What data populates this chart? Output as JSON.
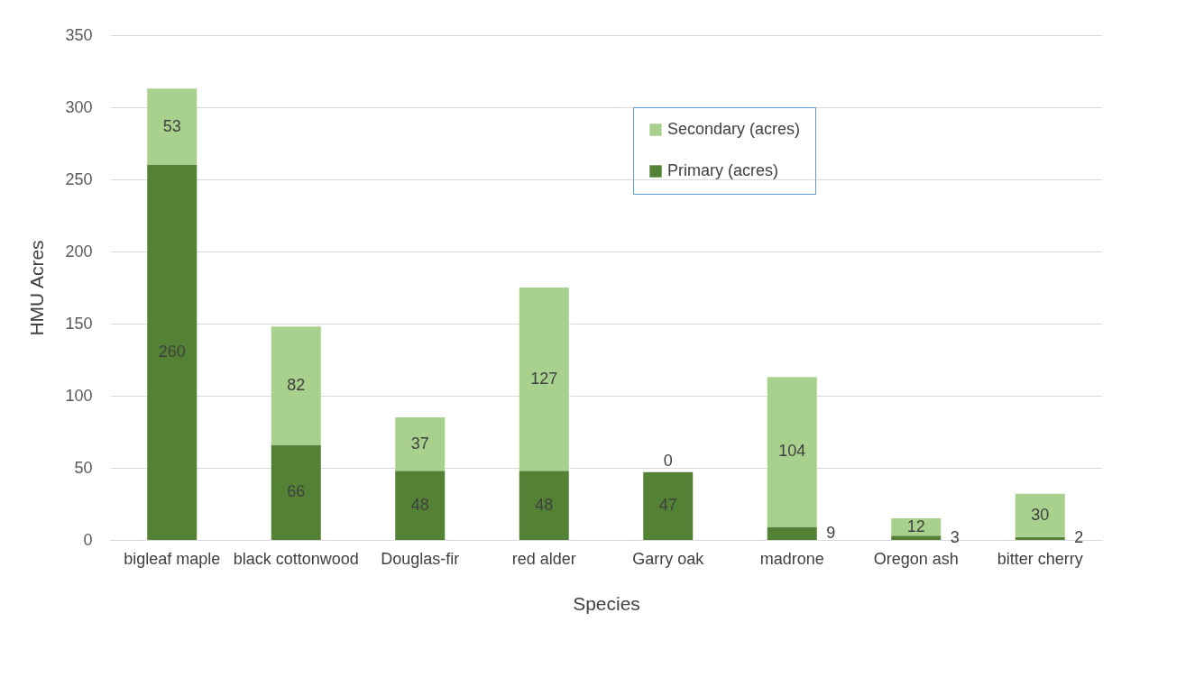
{
  "chart_data": {
    "type": "bar",
    "stacked": true,
    "xlabel": "Species",
    "ylabel": "HMU Acres",
    "categories": [
      "bigleaf maple",
      "black cottonwood",
      "Douglas-fir",
      "red alder",
      "Garry oak",
      "madrone",
      "Oregon ash",
      "bitter cherry"
    ],
    "series": [
      {
        "name": "Primary (acres)",
        "color": "#548235",
        "values": [
          260,
          66,
          48,
          48,
          47,
          9,
          3,
          2
        ]
      },
      {
        "name": "Secondary (acres)",
        "color": "#a9d18e",
        "values": [
          53,
          82,
          37,
          127,
          0,
          104,
          12,
          30
        ]
      }
    ],
    "ylim": [
      0,
      350
    ],
    "yticks": [
      0,
      50,
      100,
      150,
      200,
      250,
      300,
      350
    ],
    "grid": "y",
    "legend": "top right",
    "data_labels": true
  }
}
